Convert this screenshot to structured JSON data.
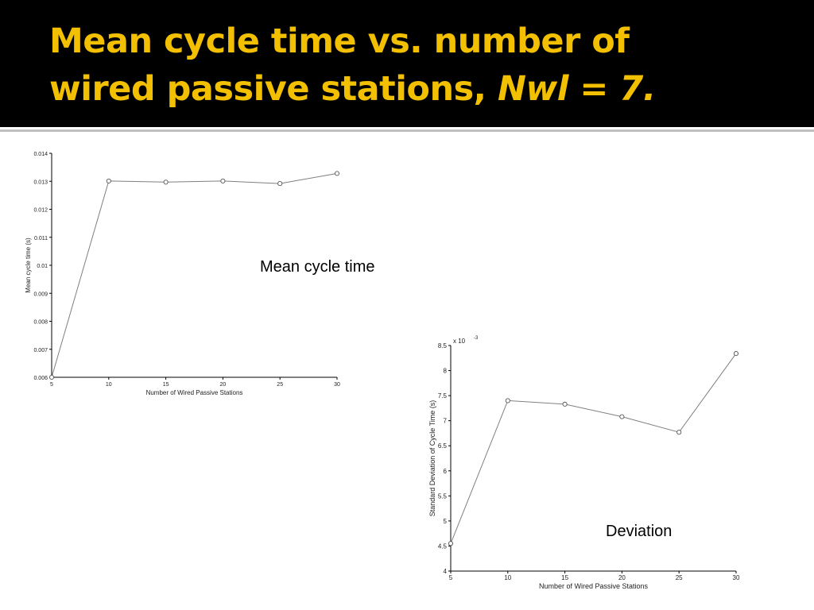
{
  "slide": {
    "title_line1": "Mean cycle time vs. number of",
    "title_line2_prefix": "wired passive stations, ",
    "title_line2_italic": "Nwl = 7.",
    "caption_mean": "Mean cycle time",
    "caption_deviation": "Deviation",
    "colors": {
      "header_bg": "#000000",
      "title": "#f2c000",
      "rule": "#bfbfbf",
      "line": "#7f7f7f"
    }
  },
  "chart_data": [
    {
      "type": "line",
      "xlabel": "Number of Wired Passive Stations",
      "ylabel": "Mean cycle time (s)",
      "x": [
        5,
        10,
        15,
        20,
        25,
        30
      ],
      "xticks": [
        "5",
        "10",
        "15",
        "20",
        "25",
        "30"
      ],
      "yticks": [
        "0.006",
        "0.007",
        "0.008",
        "0.009",
        "0.01",
        "0.011",
        "0.012",
        "0.013",
        "0.014"
      ],
      "xlim": [
        5,
        30
      ],
      "ylim": [
        0.006,
        0.014
      ],
      "series": [
        {
          "values": [
            0.006,
            0.01301,
            0.01297,
            0.01301,
            0.01292,
            0.01328
          ]
        }
      ]
    },
    {
      "type": "line",
      "xlabel": "Number of Wired Passive Stations",
      "ylabel": "Standard Deviation of Cycle Time (s)",
      "exponent_label": "x 10",
      "exponent": "-3",
      "x": [
        5,
        10,
        15,
        20,
        25,
        30
      ],
      "xticks": [
        "5",
        "10",
        "15",
        "20",
        "25",
        "30"
      ],
      "yticks": [
        "4",
        "4.5",
        "5",
        "5.5",
        "6",
        "6.5",
        "7",
        "7.5",
        "8",
        "8.5"
      ],
      "xlim": [
        5,
        30
      ],
      "ylim": [
        4,
        8.5
      ],
      "series": [
        {
          "values": [
            4.55,
            7.4,
            7.33,
            7.08,
            6.77,
            8.34
          ]
        }
      ]
    }
  ]
}
